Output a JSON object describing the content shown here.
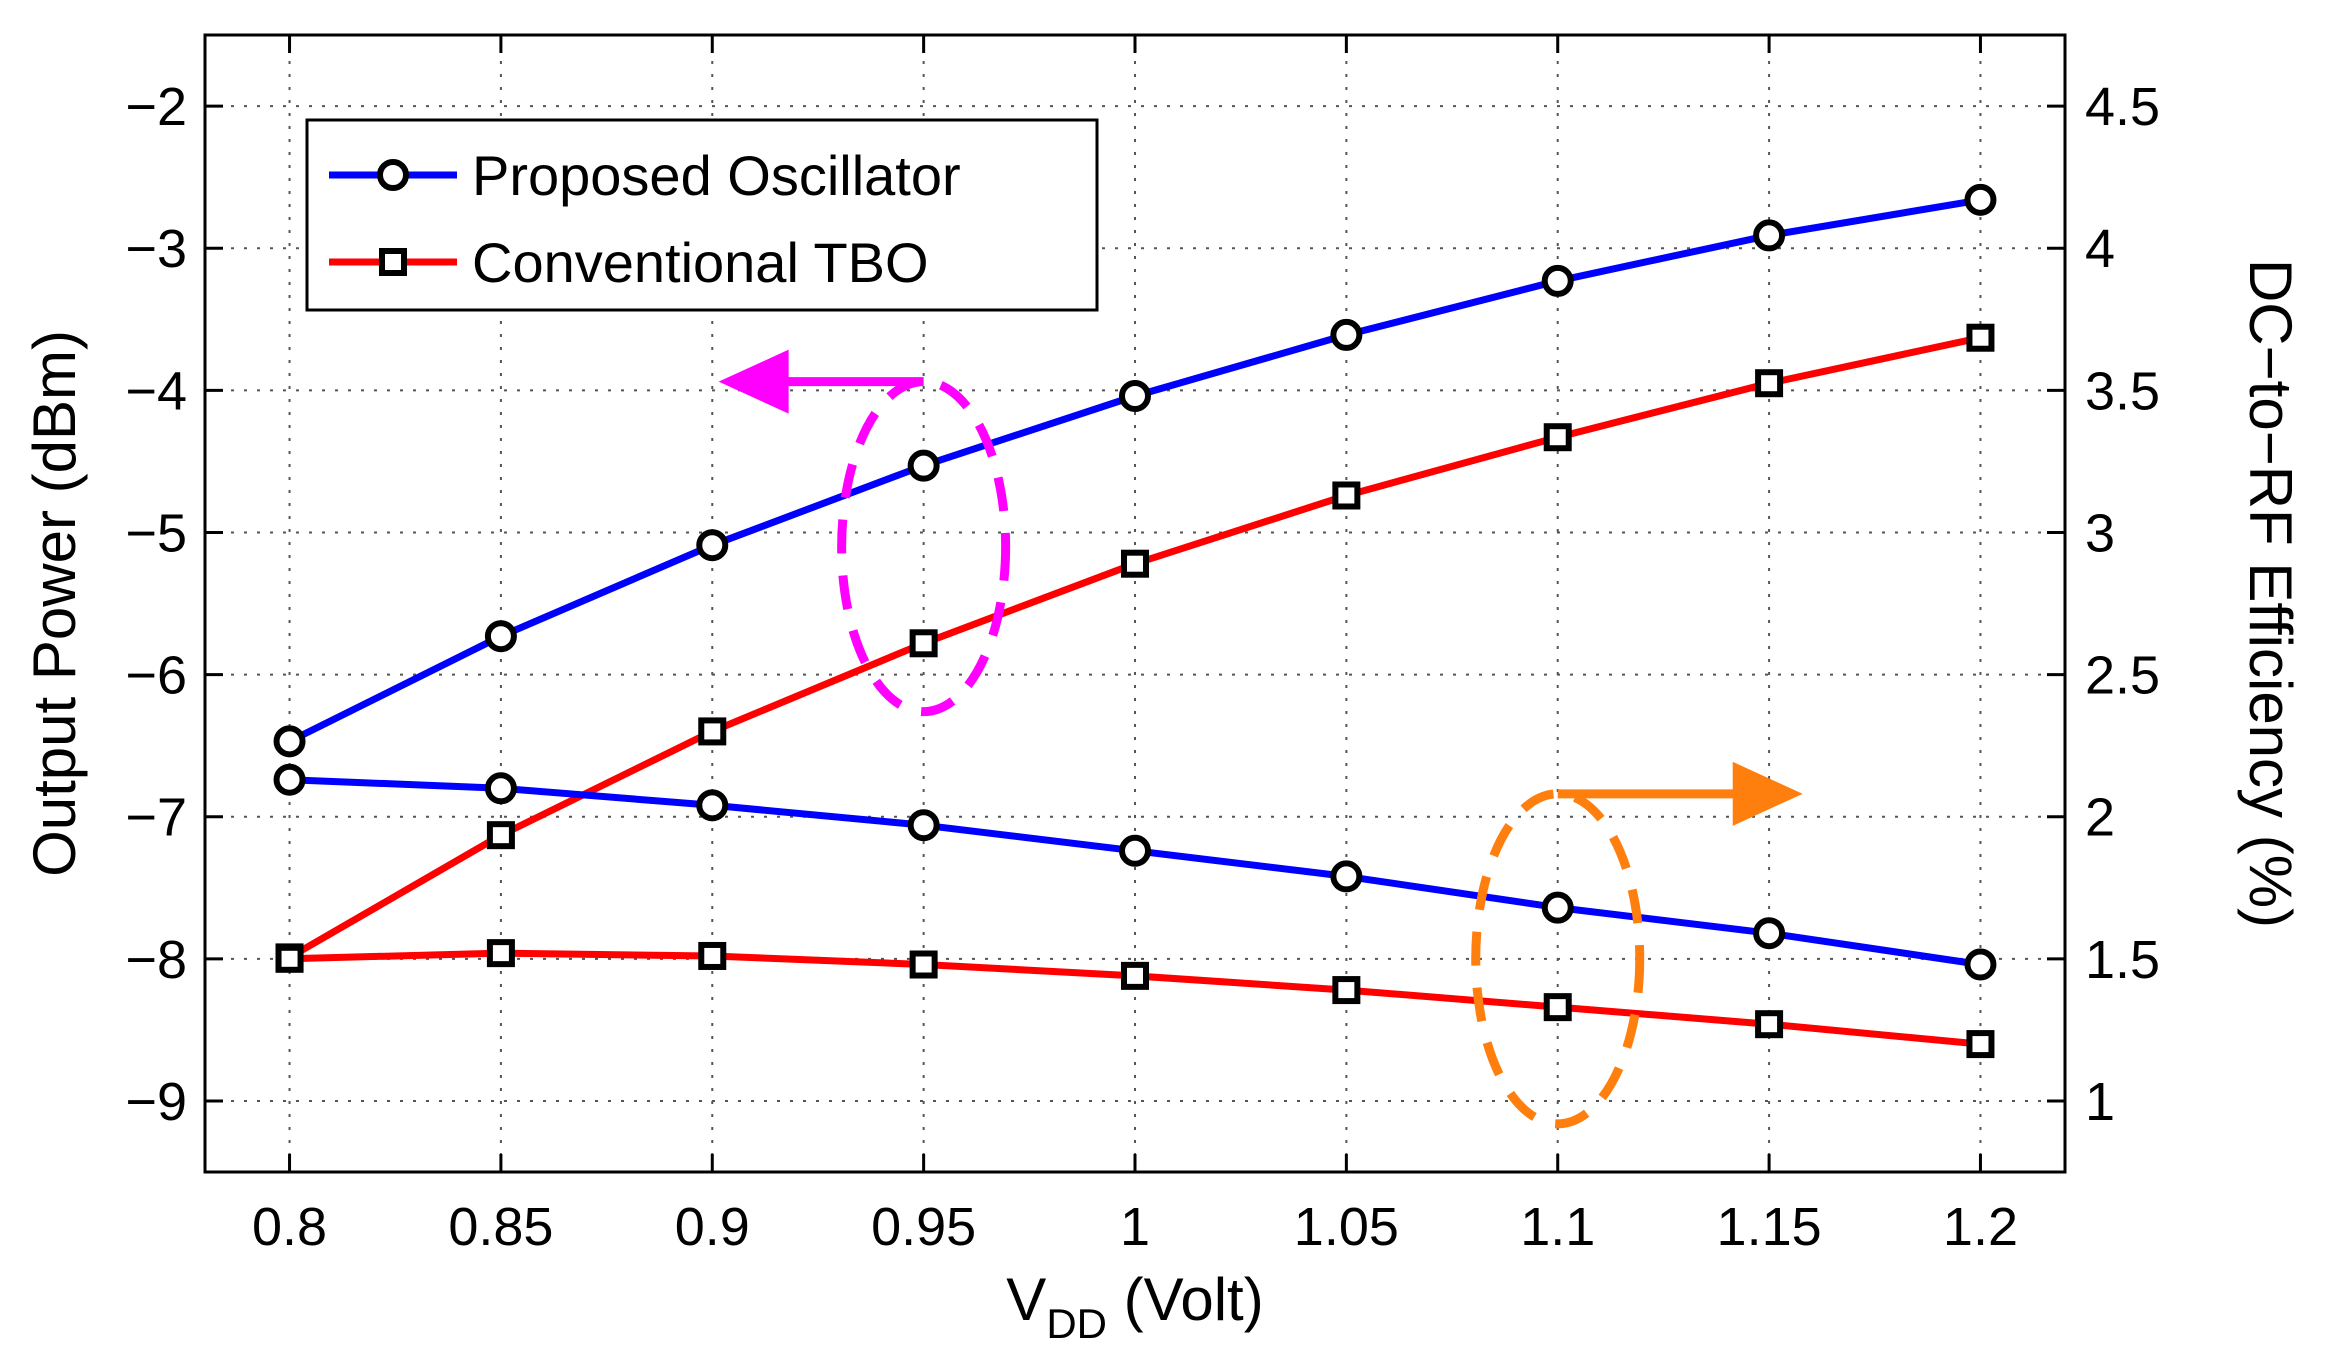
{
  "chart_data": {
    "type": "line",
    "x": [
      0.8,
      0.85,
      0.9,
      0.95,
      1,
      1.05,
      1.1,
      1.15,
      1.2
    ],
    "xlim": [
      0.78,
      1.22
    ],
    "x_ticks": [
      "0.8",
      "0.85",
      "0.9",
      "0.95",
      "1",
      "1.05",
      "1.1",
      "1.15",
      "1.2"
    ],
    "xlabel": {
      "main": "V",
      "sub": "DD",
      "rest": " (Volt)"
    },
    "y_left": {
      "label": "Output Power (dBm)",
      "lim": [
        -9.5,
        -1.5
      ],
      "ticks": [
        "−9",
        "−8",
        "−7",
        "−6",
        "−5",
        "−4",
        "−3",
        "−2"
      ],
      "tick_values": [
        -9,
        -8,
        -7,
        -6,
        -5,
        -4,
        -3,
        -2
      ]
    },
    "y_right": {
      "label": "DC−to−RF Efficiency (%)",
      "lim": [
        0.75,
        4.75
      ],
      "ticks": [
        "1",
        "1.5",
        "2",
        "2.5",
        "3",
        "3.5",
        "4",
        "4.5"
      ],
      "tick_values": [
        1,
        1.5,
        2,
        2.5,
        3,
        3.5,
        4,
        4.5
      ]
    },
    "grid": true,
    "legend_position": "top-left",
    "legend": [
      {
        "label": "Proposed Oscillator",
        "color": "#0000ff",
        "marker": "circle"
      },
      {
        "label": "Conventional TBO",
        "color": "#ff0000",
        "marker": "square"
      }
    ],
    "series": [
      {
        "name": "Proposed Oscillator",
        "axis": "left",
        "color": "#0000ff",
        "marker": "circle",
        "values": [
          -6.47,
          -5.73,
          -5.09,
          -4.53,
          -4.04,
          -3.61,
          -3.23,
          -2.91,
          -2.66
        ]
      },
      {
        "name": "Conventional TBO",
        "axis": "left",
        "color": "#ff0000",
        "marker": "square",
        "values": [
          -7.99,
          -7.13,
          -6.4,
          -5.78,
          -5.22,
          -4.74,
          -4.33,
          -3.95,
          -3.63
        ]
      },
      {
        "name": "Proposed Oscillator",
        "axis": "right",
        "color": "#0000ff",
        "marker": "circle",
        "values": [
          2.13,
          2.1,
          2.04,
          1.97,
          1.88,
          1.79,
          1.68,
          1.59,
          1.48
        ]
      },
      {
        "name": "Conventional TBO",
        "axis": "right",
        "color": "#ff0000",
        "marker": "square",
        "values": [
          1.5,
          1.52,
          1.51,
          1.48,
          1.44,
          1.39,
          1.33,
          1.27,
          1.2
        ]
      }
    ],
    "annotations": [
      {
        "kind": "ellipse-with-arrow",
        "color": "#ff00ff",
        "points_to": "left-axis",
        "center_x": 0.95,
        "center_y_left": -5.1
      },
      {
        "kind": "ellipse-with-arrow",
        "color": "#ff7f0e",
        "points_to": "right-axis",
        "center_x": 1.1,
        "center_y_right": 1.5
      }
    ]
  }
}
